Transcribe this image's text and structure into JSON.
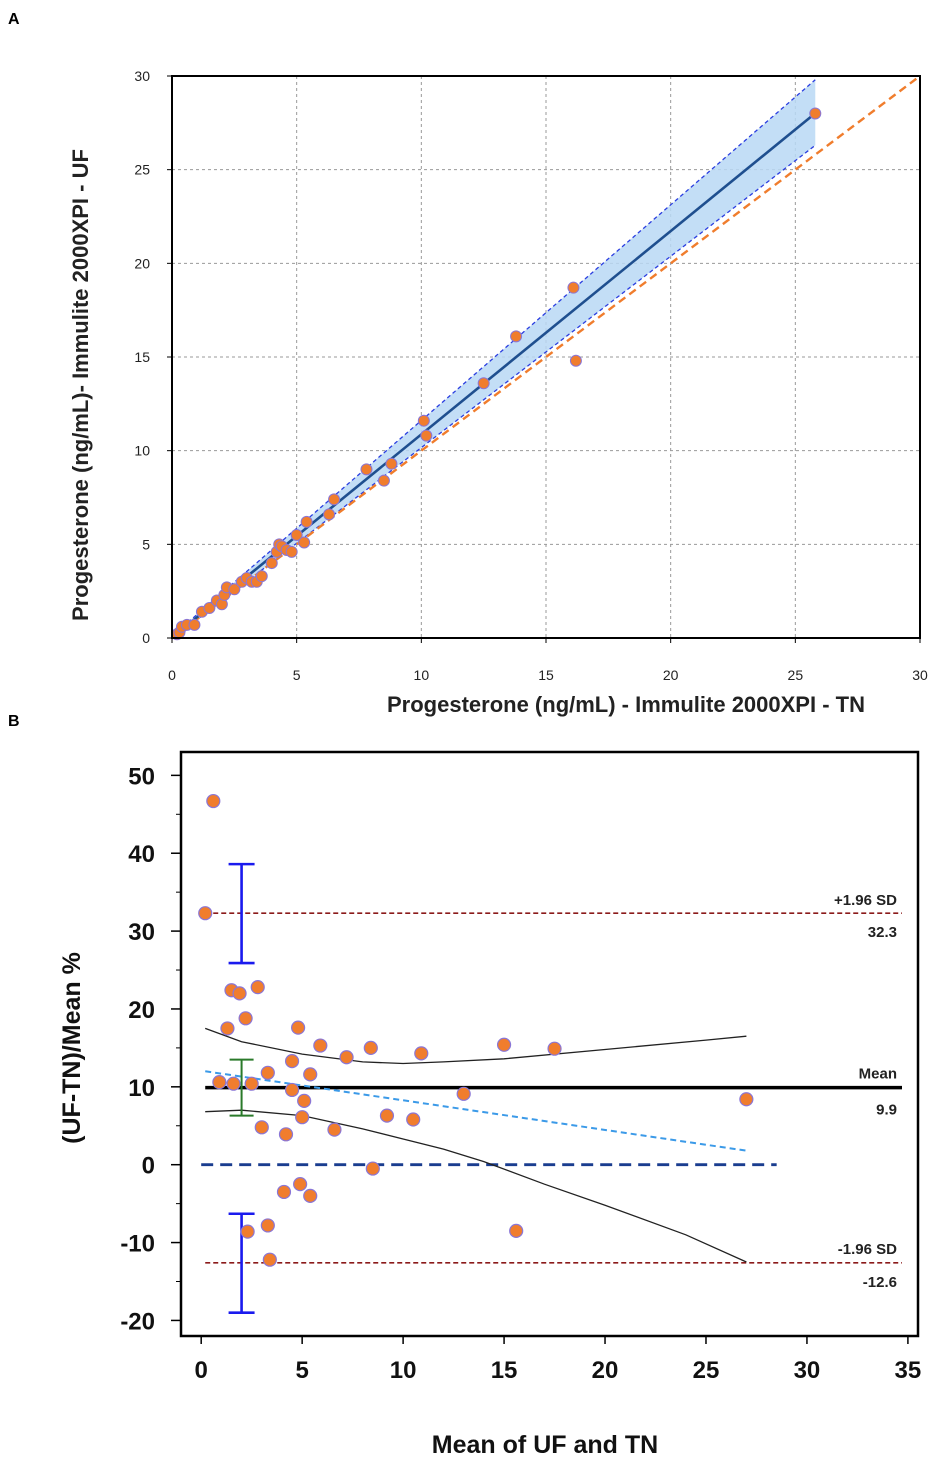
{
  "figure": {
    "panel_a_label": "A",
    "panel_b_label": "B"
  },
  "colors": {
    "point_fill": "#f07d2d",
    "point_stroke": "#8a76d6",
    "regression_line": "#1f4f8f",
    "ci_band": "#b9d8f4",
    "ci_line": "#2a3ee0",
    "identity_line": "#f07d2d",
    "grid": "#9a9a9a",
    "limit_line": "#8b1a1a",
    "mean_line": "#000000",
    "zero_line": "#1a3d8f",
    "trend_line": "#3b9ae8",
    "curve_line": "#222222",
    "ci_bar_blue": "#1a1aee",
    "ci_bar_green": "#2a7a2a"
  },
  "chart_data": [
    {
      "type": "scatter",
      "title": "",
      "xlabel": "Progesterone (ng/mL) - Immulite 2000XPI - TN",
      "ylabel": "Progesterone (ng/mL)- Immulite 2000XPI - UF",
      "xlim": [
        0,
        30
      ],
      "ylim": [
        0,
        30
      ],
      "xticks": [
        "0",
        "5",
        "10",
        "15",
        "20",
        "25",
        "30"
      ],
      "yticks": [
        "0",
        "5",
        "10",
        "15",
        "20",
        "25",
        "30"
      ],
      "grid": true,
      "regression": {
        "slope": 1.085,
        "intercept": 0.02,
        "x_range": [
          0,
          25.8
        ]
      },
      "confidence_band": {
        "x": [
          0,
          25.8
        ],
        "upper": [
          0.1,
          29.8
        ],
        "lower": [
          -0.05,
          26.3
        ]
      },
      "identity_line": {
        "x": [
          0,
          30
        ],
        "y": [
          0,
          30
        ]
      },
      "points": [
        {
          "x": 0.2,
          "y": 0.2
        },
        {
          "x": 0.3,
          "y": 0.3
        },
        {
          "x": 0.4,
          "y": 0.6
        },
        {
          "x": 0.6,
          "y": 0.7
        },
        {
          "x": 0.9,
          "y": 0.7
        },
        {
          "x": 1.2,
          "y": 1.4
        },
        {
          "x": 1.5,
          "y": 1.6
        },
        {
          "x": 1.8,
          "y": 2.0
        },
        {
          "x": 2.0,
          "y": 1.8
        },
        {
          "x": 2.1,
          "y": 2.3
        },
        {
          "x": 2.2,
          "y": 2.7
        },
        {
          "x": 2.5,
          "y": 2.6
        },
        {
          "x": 2.8,
          "y": 3.0
        },
        {
          "x": 3.0,
          "y": 3.2
        },
        {
          "x": 3.2,
          "y": 3.0
        },
        {
          "x": 3.4,
          "y": 3.0
        },
        {
          "x": 3.6,
          "y": 3.3
        },
        {
          "x": 4.0,
          "y": 4.0
        },
        {
          "x": 4.2,
          "y": 4.6
        },
        {
          "x": 4.3,
          "y": 5.0
        },
        {
          "x": 4.4,
          "y": 4.9
        },
        {
          "x": 4.6,
          "y": 4.7
        },
        {
          "x": 4.8,
          "y": 4.6
        },
        {
          "x": 5.0,
          "y": 5.5
        },
        {
          "x": 5.3,
          "y": 5.1
        },
        {
          "x": 5.4,
          "y": 6.2
        },
        {
          "x": 6.3,
          "y": 6.6
        },
        {
          "x": 6.5,
          "y": 7.4
        },
        {
          "x": 7.8,
          "y": 9.0
        },
        {
          "x": 8.5,
          "y": 8.4
        },
        {
          "x": 8.8,
          "y": 9.3
        },
        {
          "x": 10.1,
          "y": 11.6
        },
        {
          "x": 10.2,
          "y": 10.8
        },
        {
          "x": 12.5,
          "y": 13.6
        },
        {
          "x": 13.8,
          "y": 16.1
        },
        {
          "x": 16.1,
          "y": 18.7
        },
        {
          "x": 16.2,
          "y": 14.8
        },
        {
          "x": 25.8,
          "y": 28.0
        }
      ]
    },
    {
      "type": "scatter",
      "title": "",
      "xlabel": "Mean of UF and TN",
      "ylabel": "(UF-TN)/Mean %",
      "xlim": [
        -1,
        35.5
      ],
      "ylim": [
        -22,
        53
      ],
      "xticks": [
        "0",
        "5",
        "10",
        "15",
        "20",
        "25",
        "30",
        "35"
      ],
      "yticks": [
        "50",
        "40",
        "30",
        "20",
        "10",
        "0",
        "-10",
        "-20"
      ],
      "grid": false,
      "reference_lines": [
        {
          "name": "upper_limit",
          "label": "+1.96 SD",
          "value_label": "32.3",
          "y": 32.3
        },
        {
          "name": "mean",
          "label": "Mean",
          "value_label": "9.9",
          "y": 9.9
        },
        {
          "name": "lower_limit",
          "label": "-1.96 SD",
          "value_label": "-12.6",
          "y": -12.6
        }
      ],
      "zero_line": {
        "y": 0,
        "x_range": [
          0,
          28.5
        ]
      },
      "trend_line": {
        "x": [
          0.2,
          27
        ],
        "y": [
          12.0,
          1.8
        ]
      },
      "ci_curve_upper": {
        "x": [
          0.2,
          2,
          5,
          8,
          10,
          12,
          15,
          20,
          25,
          27
        ],
        "y": [
          17.5,
          15.8,
          14.2,
          13.2,
          13.0,
          13.2,
          13.6,
          14.8,
          16.0,
          16.5
        ]
      },
      "ci_curve_lower": {
        "x": [
          0.2,
          2,
          5,
          8,
          10,
          12,
          14,
          17,
          20,
          24,
          27
        ],
        "y": [
          6.8,
          7.0,
          6.3,
          4.6,
          3.3,
          2.0,
          0.4,
          -2.5,
          -5.2,
          -9.0,
          -12.5
        ]
      },
      "error_bars": [
        {
          "name": "upper_limit_ci",
          "x": 2.0,
          "low": 25.9,
          "high": 38.6
        },
        {
          "name": "mean_ci",
          "x": 2.0,
          "low": 6.3,
          "high": 13.5
        },
        {
          "name": "lower_limit_ci",
          "x": 2.0,
          "low": -19.0,
          "high": -6.3
        }
      ],
      "points": [
        {
          "x": 0.2,
          "y": 32.3
        },
        {
          "x": 0.6,
          "y": 46.7
        },
        {
          "x": 0.9,
          "y": 10.6
        },
        {
          "x": 1.3,
          "y": 17.5
        },
        {
          "x": 1.5,
          "y": 22.4
        },
        {
          "x": 1.6,
          "y": 10.4
        },
        {
          "x": 1.9,
          "y": 22.0
        },
        {
          "x": 2.2,
          "y": 18.8
        },
        {
          "x": 2.3,
          "y": -8.6
        },
        {
          "x": 2.5,
          "y": 10.4
        },
        {
          "x": 2.8,
          "y": 22.8
        },
        {
          "x": 3.0,
          "y": 4.8
        },
        {
          "x": 3.3,
          "y": 11.8
        },
        {
          "x": 3.3,
          "y": -7.8
        },
        {
          "x": 3.4,
          "y": -12.2
        },
        {
          "x": 4.1,
          "y": -3.5
        },
        {
          "x": 4.2,
          "y": 3.9
        },
        {
          "x": 4.5,
          "y": 13.3
        },
        {
          "x": 4.5,
          "y": 9.6
        },
        {
          "x": 4.8,
          "y": 17.6
        },
        {
          "x": 4.9,
          "y": -2.5
        },
        {
          "x": 5.0,
          "y": 6.1
        },
        {
          "x": 5.1,
          "y": 8.2
        },
        {
          "x": 5.4,
          "y": 11.6
        },
        {
          "x": 5.4,
          "y": -4.0
        },
        {
          "x": 5.9,
          "y": 15.3
        },
        {
          "x": 6.6,
          "y": 4.5
        },
        {
          "x": 7.2,
          "y": 13.8
        },
        {
          "x": 8.4,
          "y": 15.0
        },
        {
          "x": 8.5,
          "y": -0.5
        },
        {
          "x": 9.2,
          "y": 6.3
        },
        {
          "x": 10.5,
          "y": 5.8
        },
        {
          "x": 10.9,
          "y": 14.3
        },
        {
          "x": 13.0,
          "y": 9.1
        },
        {
          "x": 15.0,
          "y": 15.4
        },
        {
          "x": 15.6,
          "y": -8.5
        },
        {
          "x": 17.5,
          "y": 14.9
        },
        {
          "x": 27.0,
          "y": 8.4
        }
      ]
    }
  ]
}
